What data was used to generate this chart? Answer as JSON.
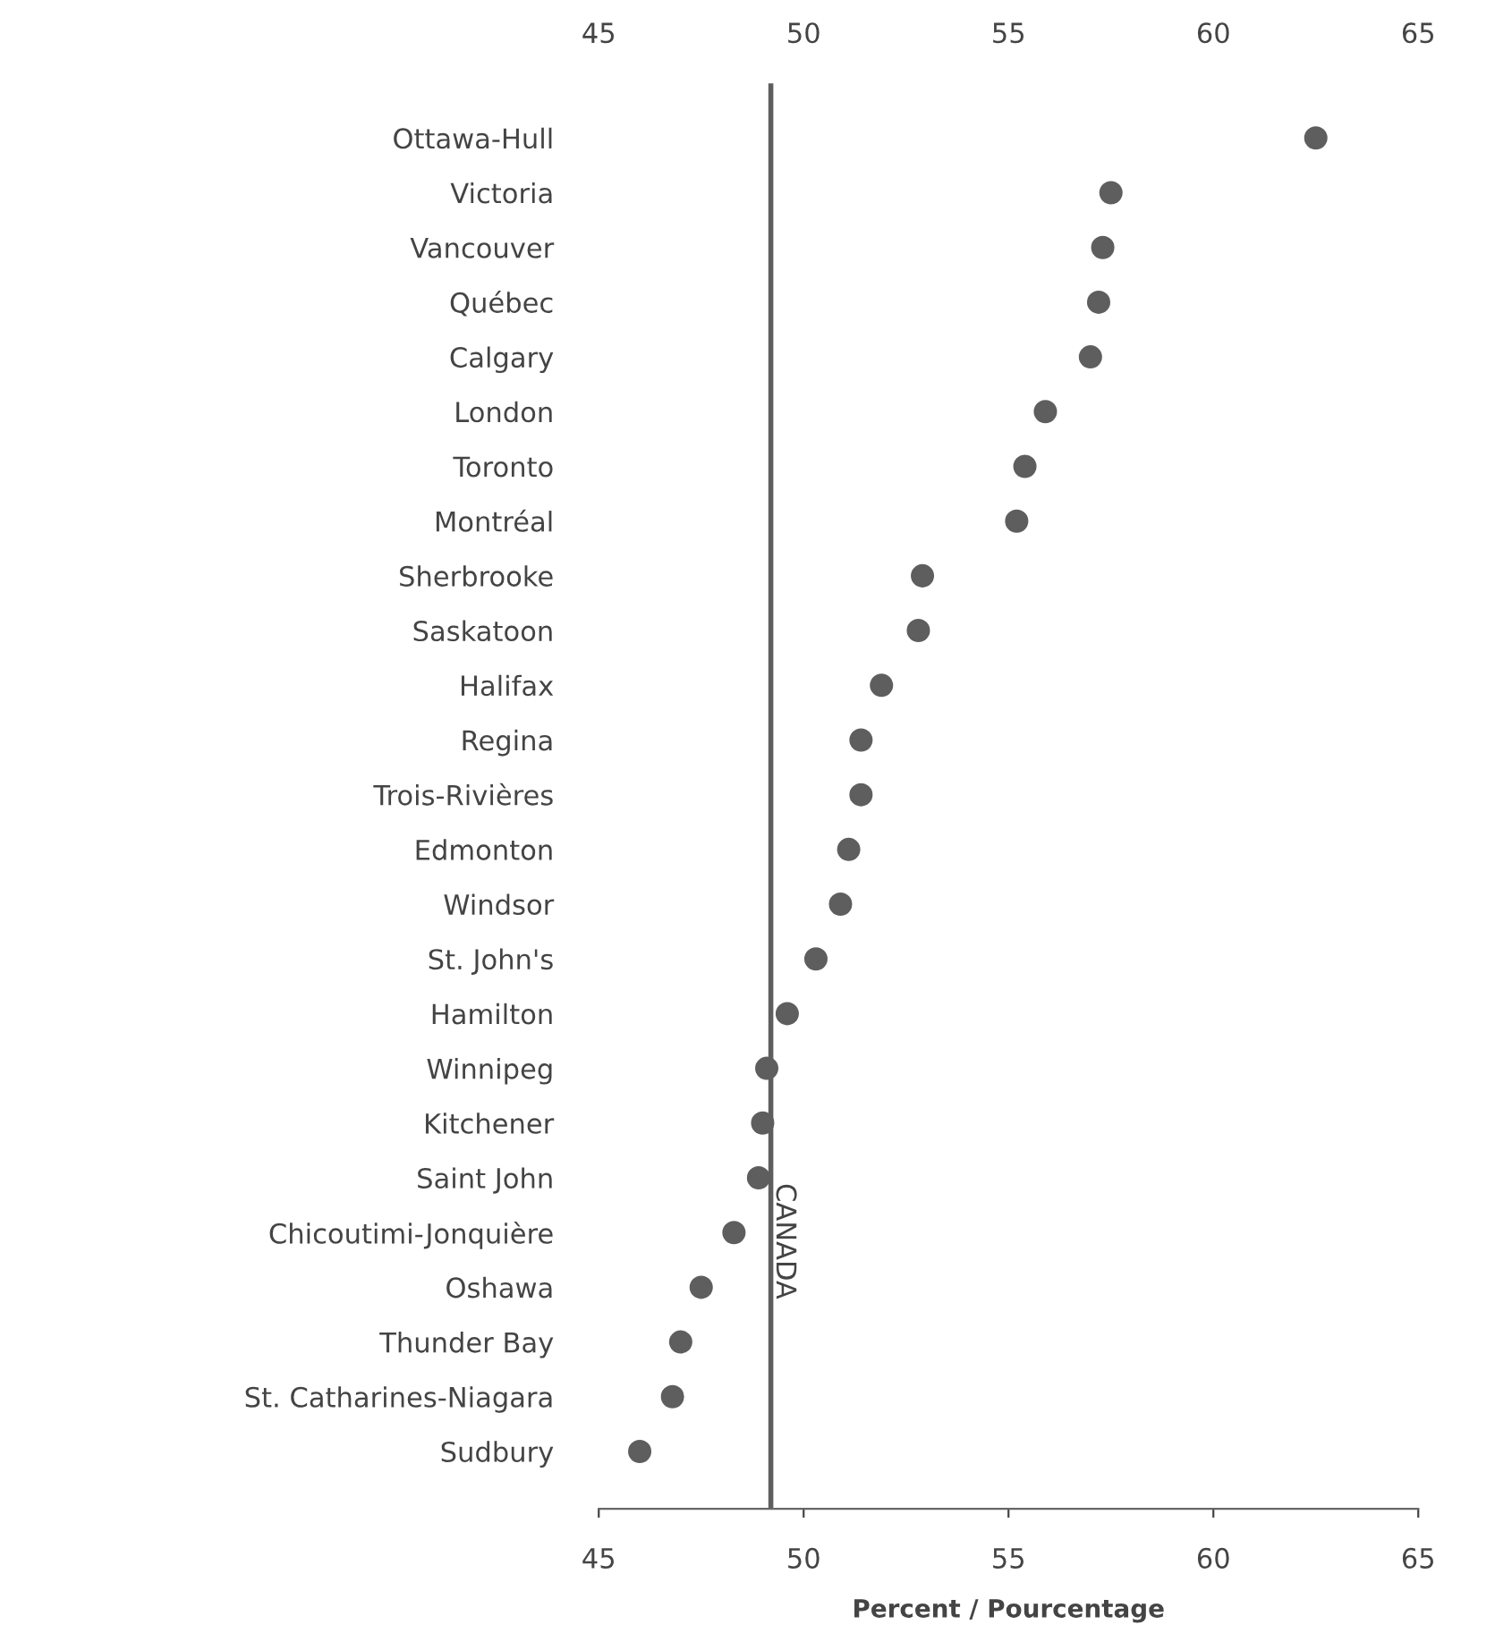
{
  "chart_data": {
    "type": "scatter",
    "categories": [
      "Ottawa-Hull",
      "Victoria",
      "Vancouver",
      "Québec",
      "Calgary",
      "London",
      "Toronto",
      "Montréal",
      "Sherbrooke",
      "Saskatoon",
      "Halifax",
      "Regina",
      "Trois-Rivières",
      "Edmonton",
      "Windsor",
      "St. John's",
      "Hamilton",
      "Winnipeg",
      "Kitchener",
      "Saint John",
      "Chicoutimi-Jonquière",
      "Oshawa",
      "Thunder Bay",
      "St. Catharines-Niagara",
      "Sudbury"
    ],
    "series": [
      {
        "color": "#5e5e5e",
        "values": [
          62.5,
          57.5,
          57.3,
          57.2,
          57.0,
          55.9,
          55.4,
          55.2,
          52.9,
          52.8,
          51.9,
          51.4,
          51.4,
          51.1,
          50.9,
          50.3,
          49.6,
          49.1,
          49.0,
          48.9,
          48.3,
          47.5,
          47.0,
          46.8,
          46.0
        ]
      }
    ],
    "orientation": "horizontal",
    "xlabel": "Percent / Pourcentage",
    "xlim": [
      45,
      65
    ],
    "xticks": [
      45,
      50,
      55,
      60,
      65
    ],
    "x2lim": [
      45,
      65
    ],
    "x2ticks": [
      45,
      50,
      55,
      60,
      65
    ],
    "ref_lines": [
      {
        "axis": "x",
        "value": 49.2,
        "label": "CANADA",
        "color": "#5e5e5e"
      }
    ],
    "marker": "circle",
    "grid": false,
    "legend": false
  }
}
